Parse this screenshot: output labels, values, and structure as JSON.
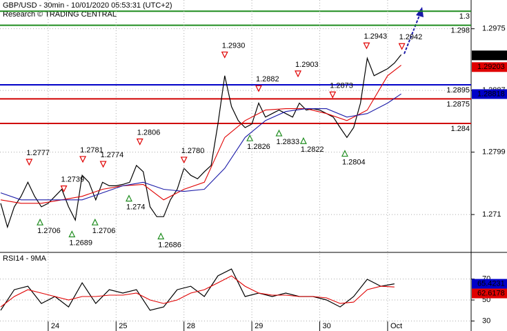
{
  "chart_data": [
    {
      "type": "line",
      "title": "GBP/USD - 30min - 10/01/2020 05:53:31 (UTC+2)",
      "subtitle": "Research © TRADING CENTRAL",
      "xlim": [
        0.29,
        7.23
      ],
      "ylim": [
        1.2657,
        1.3016
      ],
      "yticks": [
        1.2975,
        1.2887,
        1.2799,
        1.271
      ],
      "grid": true,
      "series": [
        {
          "color": "#000000",
          "x": [
            0.3,
            0.4,
            0.5,
            0.6,
            0.7,
            0.8,
            0.9,
            1.0,
            1.1,
            1.2,
            1.3,
            1.4,
            1.5,
            1.6,
            1.7,
            1.8,
            1.9,
            2.0,
            2.1,
            2.2,
            2.3,
            2.4,
            2.5,
            2.6,
            2.7,
            2.8,
            2.9,
            3.0,
            3.1,
            3.2,
            3.3,
            3.4,
            3.5,
            3.6,
            3.7,
            3.8,
            3.9,
            4.0,
            4.1,
            4.2,
            4.3,
            4.4,
            4.5,
            4.6,
            4.7,
            4.8,
            4.9,
            5.0,
            5.1,
            5.2,
            5.3,
            5.4,
            5.5,
            5.6,
            5.7,
            5.8,
            5.9,
            6.0,
            6.1,
            6.2
          ],
          "values": [
            1.2726,
            1.2692,
            1.2721,
            1.2736,
            1.2756,
            1.2736,
            1.2721,
            1.2726,
            1.2736,
            1.2746,
            1.2721,
            1.2702,
            1.2766,
            1.2756,
            1.2731,
            1.2756,
            1.2751,
            1.2751,
            1.2753,
            1.2756,
            1.278,
            1.2771,
            1.2721,
            1.2707,
            1.2707,
            1.2731,
            1.2746,
            1.2776,
            1.2766,
            1.2761,
            1.2771,
            1.278,
            1.2839,
            1.2908,
            1.2864,
            1.2844,
            1.2834,
            1.2839,
            1.2869,
            1.2849,
            1.2854,
            1.2859,
            1.2854,
            1.2849,
            1.2869,
            1.2859,
            1.2861,
            1.2859,
            1.2854,
            1.2849,
            1.2834,
            1.282,
            1.2834,
            1.2869,
            1.2933,
            1.2908,
            1.2913,
            1.2918,
            1.2926,
            1.2938
          ]
        },
        {
          "color": "#e00000",
          "x": [
            0.3,
            0.6,
            0.9,
            1.2,
            1.5,
            1.8,
            2.1,
            2.4,
            2.7,
            3.0,
            3.3,
            3.6,
            3.9,
            4.2,
            4.5,
            4.8,
            5.1,
            5.4,
            5.7,
            6.0,
            6.2
          ],
          "values": [
            1.2731,
            1.2726,
            1.2726,
            1.2731,
            1.2736,
            1.2746,
            1.2751,
            1.2753,
            1.2731,
            1.2746,
            1.2756,
            1.282,
            1.2844,
            1.2859,
            1.2861,
            1.2861,
            1.2854,
            1.2844,
            1.2859,
            1.2908,
            1.2923
          ]
        },
        {
          "color": "#1a1aa8",
          "x": [
            0.3,
            0.6,
            0.9,
            1.2,
            1.5,
            1.8,
            2.1,
            2.4,
            2.7,
            3.0,
            3.3,
            3.6,
            3.9,
            4.2,
            4.5,
            4.8,
            5.1,
            5.4,
            5.7,
            6.0,
            6.2
          ],
          "values": [
            1.2741,
            1.2731,
            1.2731,
            1.2731,
            1.2731,
            1.2741,
            1.2751,
            1.2756,
            1.2746,
            1.2743,
            1.2746,
            1.2776,
            1.282,
            1.2844,
            1.2857,
            1.2861,
            1.2861,
            1.2849,
            1.2854,
            1.2869,
            1.2882
          ]
        }
      ],
      "levels": [
        {
          "value": 1.3,
          "color": "#1e8c1e"
        },
        {
          "value": 1.298,
          "color": "#1e8c1e"
        },
        {
          "value": 1.2895,
          "color": "#0000c8"
        },
        {
          "value": 1.2875,
          "color": "#d00000"
        },
        {
          "value": 1.284,
          "color": "#d00000"
        }
      ],
      "last_values": [
        {
          "value": 1.2937,
          "color": "#000000"
        },
        {
          "value": 1.29203,
          "color": "#e00000"
        },
        {
          "value": 1.28818,
          "color": "#0000c8"
        }
      ],
      "annotations": [
        {
          "kind": "high",
          "x": 0.72,
          "value": 1.2777,
          "label": "1.2777"
        },
        {
          "kind": "high",
          "x": 1.23,
          "value": 1.2739,
          "label": "1.2739"
        },
        {
          "kind": "high",
          "x": 1.51,
          "value": 1.2781,
          "label": "1.2781"
        },
        {
          "kind": "high",
          "x": 1.81,
          "value": 1.2774,
          "label": "1.2774"
        },
        {
          "kind": "high",
          "x": 2.35,
          "value": 1.2806,
          "label": "1.2806"
        },
        {
          "kind": "high",
          "x": 3.0,
          "value": 1.278,
          "label": "1.2780"
        },
        {
          "kind": "high",
          "x": 3.6,
          "value": 1.293,
          "label": "1.2930"
        },
        {
          "kind": "high",
          "x": 4.1,
          "value": 1.2882,
          "label": "1.2882"
        },
        {
          "kind": "high",
          "x": 4.68,
          "value": 1.2903,
          "label": "1.2903"
        },
        {
          "kind": "high",
          "x": 5.19,
          "value": 1.2873,
          "label": "1.2873"
        },
        {
          "kind": "high",
          "x": 5.69,
          "value": 1.2943,
          "label": "1.2943"
        },
        {
          "kind": "high",
          "x": 6.21,
          "value": 1.2942,
          "label": "1.2942"
        },
        {
          "kind": "low",
          "x": 0.88,
          "value": 1.2706,
          "label": "1.2706"
        },
        {
          "kind": "low",
          "x": 1.35,
          "value": 1.2689,
          "label": "1.2689"
        },
        {
          "kind": "low",
          "x": 1.69,
          "value": 1.2706,
          "label": "1.2706"
        },
        {
          "kind": "low",
          "x": 2.19,
          "value": 1.274,
          "label": "1.274"
        },
        {
          "kind": "low",
          "x": 2.66,
          "value": 1.2686,
          "label": "1.2686"
        },
        {
          "kind": "low",
          "x": 3.97,
          "value": 1.2826,
          "label": "1.2826"
        },
        {
          "kind": "low",
          "x": 4.4,
          "value": 1.2833,
          "label": "1.2833"
        },
        {
          "kind": "low",
          "x": 4.76,
          "value": 1.2822,
          "label": "1.2822"
        },
        {
          "kind": "low",
          "x": 5.37,
          "value": 1.2804,
          "label": "1.2804"
        }
      ]
    },
    {
      "type": "line",
      "title": "RSI14 - 9MA",
      "xlim": [
        0.29,
        7.23
      ],
      "ylim": [
        20.5,
        94
      ],
      "yticks": [
        70,
        50,
        30
      ],
      "xticks": [
        {
          "value": 1,
          "label": "24"
        },
        {
          "value": 2,
          "label": "25"
        },
        {
          "value": 3,
          "label": "28"
        },
        {
          "value": 4,
          "label": "29"
        },
        {
          "value": 5,
          "label": "30"
        },
        {
          "value": 6,
          "label": "Oct"
        }
      ],
      "grid": true,
      "series": [
        {
          "color": "#000000",
          "x": [
            0.3,
            0.5,
            0.7,
            0.9,
            1.1,
            1.3,
            1.5,
            1.7,
            1.9,
            2.1,
            2.3,
            2.5,
            2.7,
            2.9,
            3.1,
            3.3,
            3.5,
            3.7,
            3.9,
            4.1,
            4.3,
            4.5,
            4.7,
            4.9,
            5.1,
            5.3,
            5.5,
            5.7,
            5.9,
            6.1
          ],
          "values": [
            40.2,
            59.8,
            63.1,
            46.7,
            53.3,
            43.4,
            66.4,
            46.7,
            59.8,
            56.6,
            59.8,
            40.2,
            43.4,
            59.8,
            63.1,
            53.3,
            73.0,
            79.5,
            53.3,
            56.6,
            53.3,
            56.6,
            53.3,
            53.3,
            50,
            43.4,
            53.3,
            69.7,
            63.1,
            65.4
          ]
        },
        {
          "color": "#e00000",
          "x": [
            0.3,
            0.5,
            0.7,
            0.9,
            1.1,
            1.3,
            1.5,
            1.7,
            1.9,
            2.1,
            2.3,
            2.5,
            2.7,
            2.9,
            3.1,
            3.3,
            3.5,
            3.7,
            3.9,
            4.1,
            4.3,
            4.5,
            4.7,
            4.9,
            5.1,
            5.3,
            5.5,
            5.7,
            5.9,
            6.1
          ],
          "values": [
            43.4,
            53.3,
            59.8,
            56.6,
            53.3,
            50,
            53.3,
            53.3,
            54.6,
            54.6,
            56.6,
            50,
            46.7,
            50,
            56.6,
            59.8,
            66.4,
            73,
            63.1,
            56.6,
            54.6,
            54.6,
            53.3,
            53.3,
            52,
            46.7,
            48,
            59.8,
            63.1,
            62.4
          ]
        }
      ],
      "last_values": [
        {
          "value": 65.4231,
          "color": "#0000c8"
        },
        {
          "value": 62.6178,
          "color": "#e00000"
        }
      ]
    }
  ]
}
